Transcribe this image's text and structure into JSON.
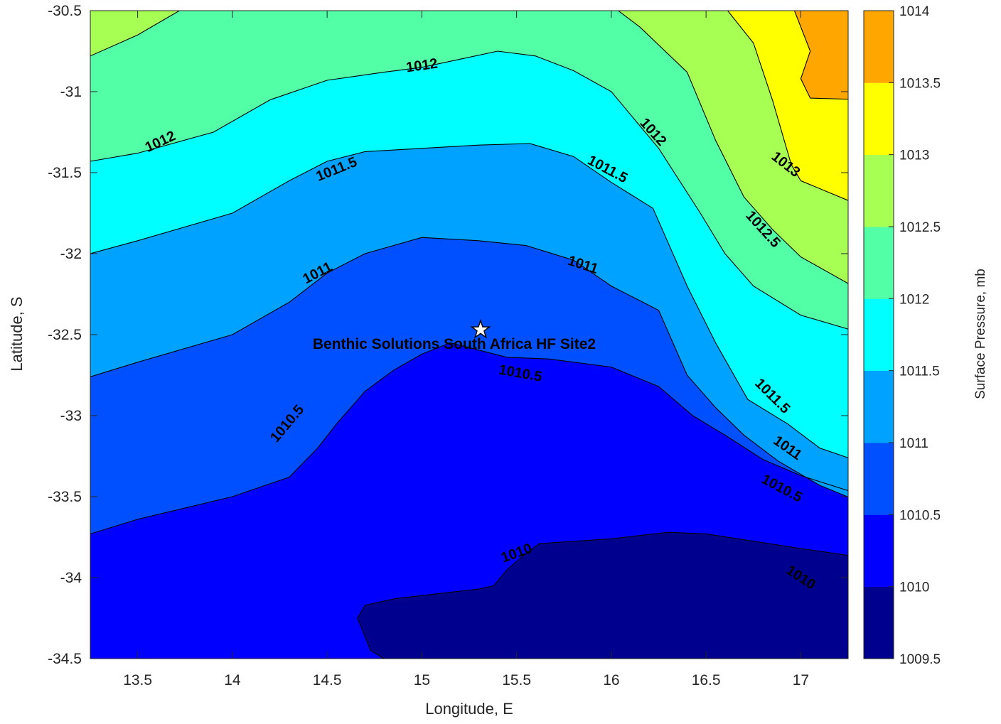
{
  "chart_data": {
    "type": "contour",
    "xlabel": "Longitude, E",
    "ylabel": "Latitude, S",
    "xlim": [
      13.25,
      17.25
    ],
    "ylim": [
      -34.5,
      -30.5
    ],
    "xticks": [
      13.5,
      14,
      14.5,
      15,
      15.5,
      16,
      16.5,
      17
    ],
    "yticks": [
      -30.5,
      -31,
      -31.5,
      -32,
      -32.5,
      -33,
      -33.5,
      -34,
      -34.5
    ],
    "colorbar": {
      "label": "Surface Pressure, mb",
      "ticks": [
        1009.5,
        1010,
        1010.5,
        1011,
        1011.5,
        1012,
        1012.5,
        1013,
        1013.5,
        1014
      ],
      "colors": [
        "#00008f",
        "#0000ff",
        "#0050ff",
        "#00a2ff",
        "#00ffff",
        "#52ffa6",
        "#a6ff52",
        "#ffff00",
        "#ffa600",
        "#ff5200"
      ]
    },
    "grid": false,
    "contours": [
      {
        "level": 1010,
        "pts": [
          [
            14.97,
            -34.62
          ],
          [
            14.73,
            -34.45
          ],
          [
            14.66,
            -34.25
          ],
          [
            14.7,
            -34.17
          ],
          [
            14.86,
            -34.13
          ],
          [
            15.3,
            -34.07
          ],
          [
            15.38,
            -34.05
          ],
          [
            15.45,
            -33.95
          ],
          [
            15.55,
            -33.85
          ],
          [
            15.62,
            -33.79
          ],
          [
            16.0,
            -33.76
          ],
          [
            16.3,
            -33.72
          ],
          [
            16.5,
            -33.73
          ],
          [
            17.0,
            -33.82
          ],
          [
            17.35,
            -33.88
          ]
        ]
      },
      {
        "level": 1010.5,
        "pts": [
          [
            13.25,
            -33.73
          ],
          [
            13.5,
            -33.64
          ],
          [
            14.0,
            -33.5
          ],
          [
            14.3,
            -33.38
          ],
          [
            14.45,
            -33.2
          ],
          [
            14.55,
            -33.05
          ],
          [
            14.7,
            -32.85
          ],
          [
            14.85,
            -32.72
          ],
          [
            15.0,
            -32.62
          ],
          [
            15.15,
            -32.55
          ],
          [
            15.45,
            -32.64
          ],
          [
            15.67,
            -32.65
          ],
          [
            16.0,
            -32.7
          ],
          [
            16.25,
            -32.82
          ],
          [
            16.43,
            -33.0
          ],
          [
            16.6,
            -33.12
          ],
          [
            16.8,
            -33.27
          ],
          [
            17.0,
            -33.37
          ],
          [
            17.35,
            -33.5
          ]
        ]
      },
      {
        "level": 1011,
        "pts": [
          [
            13.25,
            -32.76
          ],
          [
            13.5,
            -32.67
          ],
          [
            14.0,
            -32.5
          ],
          [
            14.3,
            -32.3
          ],
          [
            14.5,
            -32.12
          ],
          [
            14.7,
            -32.0
          ],
          [
            15.0,
            -31.9
          ],
          [
            15.3,
            -31.92
          ],
          [
            15.55,
            -31.95
          ],
          [
            15.8,
            -32.04
          ],
          [
            16.0,
            -32.2
          ],
          [
            16.25,
            -32.35
          ],
          [
            16.4,
            -32.75
          ],
          [
            16.55,
            -32.95
          ],
          [
            16.7,
            -33.12
          ],
          [
            16.88,
            -33.28
          ],
          [
            17.1,
            -33.43
          ],
          [
            17.35,
            -33.55
          ]
        ]
      },
      {
        "level": 1011.5,
        "pts": [
          [
            13.25,
            -32.0
          ],
          [
            13.5,
            -31.92
          ],
          [
            14.0,
            -31.75
          ],
          [
            14.3,
            -31.55
          ],
          [
            14.5,
            -31.43
          ],
          [
            14.7,
            -31.37
          ],
          [
            15.0,
            -31.35
          ],
          [
            15.3,
            -31.33
          ],
          [
            15.57,
            -31.32
          ],
          [
            15.8,
            -31.4
          ],
          [
            16.0,
            -31.56
          ],
          [
            16.22,
            -31.72
          ],
          [
            16.4,
            -32.2
          ],
          [
            16.55,
            -32.55
          ],
          [
            16.72,
            -32.9
          ],
          [
            16.93,
            -33.05
          ],
          [
            17.1,
            -33.2
          ],
          [
            17.35,
            -33.3
          ]
        ]
      },
      {
        "level": 1012,
        "pts": [
          [
            13.25,
            -31.43
          ],
          [
            13.5,
            -31.38
          ],
          [
            13.9,
            -31.25
          ],
          [
            14.2,
            -31.05
          ],
          [
            14.5,
            -30.93
          ],
          [
            14.8,
            -30.88
          ],
          [
            15.0,
            -30.85
          ],
          [
            15.2,
            -30.8
          ],
          [
            15.4,
            -30.75
          ],
          [
            15.6,
            -30.78
          ],
          [
            15.8,
            -30.87
          ],
          [
            16.0,
            -31.0
          ],
          [
            16.25,
            -31.35
          ],
          [
            16.47,
            -31.75
          ],
          [
            16.6,
            -32.0
          ],
          [
            16.75,
            -32.2
          ],
          [
            17.0,
            -32.38
          ],
          [
            17.35,
            -32.5
          ]
        ]
      },
      {
        "level": 1012.5,
        "pts": [
          [
            13.25,
            -30.78
          ],
          [
            13.5,
            -30.65
          ],
          [
            13.75,
            -30.48
          ],
          [
            13.8,
            -30.45
          ]
        ]
      },
      {
        "level": 1012.5,
        "pts": [
          [
            15.98,
            -30.45
          ],
          [
            16.15,
            -30.6
          ],
          [
            16.4,
            -30.88
          ],
          [
            16.55,
            -31.3
          ],
          [
            16.7,
            -31.65
          ],
          [
            16.85,
            -31.85
          ],
          [
            17.0,
            -32.02
          ],
          [
            17.35,
            -32.25
          ]
        ]
      },
      {
        "level": 1013,
        "pts": [
          [
            16.58,
            -30.45
          ],
          [
            16.75,
            -30.7
          ],
          [
            16.85,
            -31.05
          ],
          [
            16.95,
            -31.45
          ],
          [
            17.0,
            -31.55
          ],
          [
            17.35,
            -31.72
          ]
        ]
      },
      {
        "level": 1013.5,
        "pts": [
          [
            16.95,
            -30.45
          ],
          [
            17.05,
            -30.75
          ],
          [
            17.0,
            -30.92
          ],
          [
            17.05,
            -31.04
          ],
          [
            17.35,
            -31.05
          ]
        ]
      }
    ],
    "contour_labels": [
      {
        "text": "1012",
        "x": 13.62,
        "y": -31.31,
        "angle": -25
      },
      {
        "text": "1012",
        "x": 15.0,
        "y": -30.84,
        "angle": -8
      },
      {
        "text": "1012",
        "x": 16.22,
        "y": -31.25,
        "angle": 48
      },
      {
        "text": "1011.5",
        "x": 14.55,
        "y": -31.48,
        "angle": -22
      },
      {
        "text": "1011.5",
        "x": 15.98,
        "y": -31.48,
        "angle": 28
      },
      {
        "text": "1011",
        "x": 14.45,
        "y": -32.12,
        "angle": -28
      },
      {
        "text": "1011",
        "x": 15.85,
        "y": -32.07,
        "angle": 18
      },
      {
        "text": "1010.5",
        "x": 14.29,
        "y": -33.05,
        "angle": -50
      },
      {
        "text": "1010.5",
        "x": 15.52,
        "y": -32.74,
        "angle": 10
      },
      {
        "text": "1010.5",
        "x": 16.9,
        "y": -33.45,
        "angle": 28
      },
      {
        "text": "1011.5",
        "x": 16.85,
        "y": -32.88,
        "angle": 45
      },
      {
        "text": "1011",
        "x": 16.93,
        "y": -33.2,
        "angle": 35
      },
      {
        "text": "1012.5",
        "x": 16.8,
        "y": -31.85,
        "angle": 48
      },
      {
        "text": "1013",
        "x": 16.92,
        "y": -31.45,
        "angle": 38
      },
      {
        "text": "1010",
        "x": 15.5,
        "y": -33.85,
        "angle": -20
      },
      {
        "text": "1010",
        "x": 17.0,
        "y": -34.0,
        "angle": 33
      }
    ],
    "site": {
      "name": "Benthic Solutions South Africa HF Site2",
      "x": 15.31,
      "y": -32.47
    }
  }
}
